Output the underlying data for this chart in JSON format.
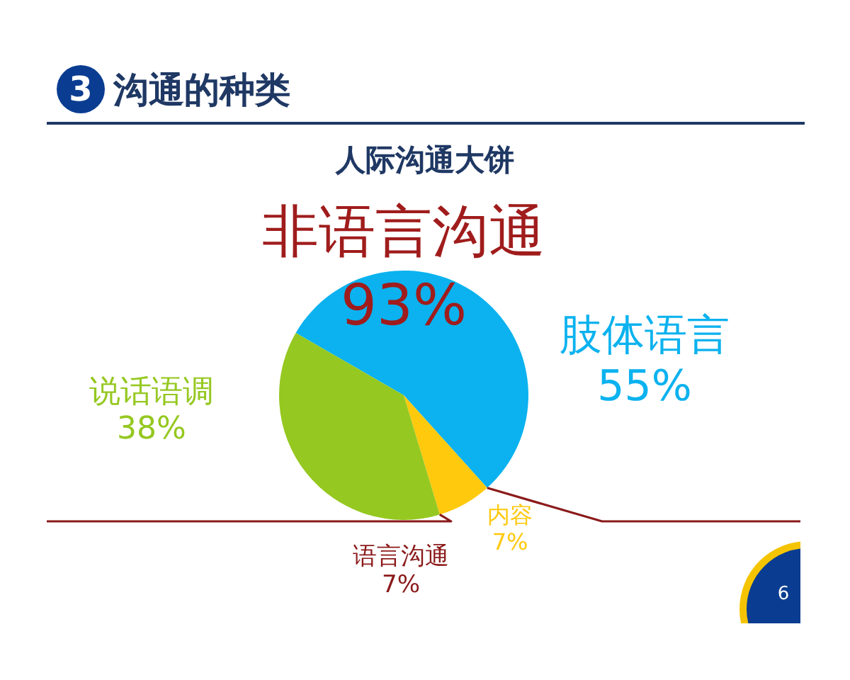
{
  "chart_data": {
    "type": "pie",
    "title": "沟通的种类",
    "subtitle": "人际沟通大饼",
    "categories": [
      "肢体语言",
      "内容",
      "说话语调"
    ],
    "values": [
      55,
      7,
      38
    ],
    "colors": [
      "#0bb2ef",
      "#ffc90e",
      "#95c820"
    ],
    "value_labels": [
      "55%",
      "7%",
      "38%"
    ],
    "annotations": [
      "3",
      "非语言沟通\n93%",
      "语言沟通\n7%",
      "6"
    ]
  }
}
